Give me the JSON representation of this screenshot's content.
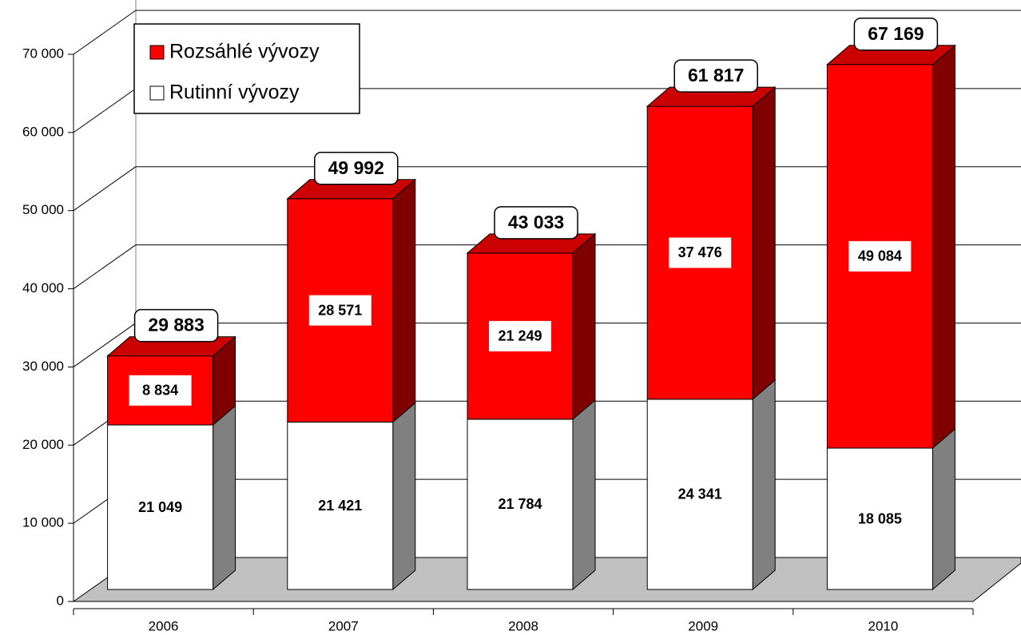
{
  "chart_data": {
    "type": "bar3d_stacked",
    "categories": [
      "2006",
      "2007",
      "2008",
      "2009",
      "2010"
    ],
    "series": [
      {
        "name": "Rutinní vývozy",
        "color": "#ffffff",
        "side_color": "#808080",
        "values": [
          21049,
          21421,
          21784,
          24341,
          18085
        ],
        "value_labels": [
          "21 049",
          "21 421",
          "21 784",
          "24 341",
          "18 085"
        ]
      },
      {
        "name": "Rozsáhlé vývozy",
        "color": "#ff0000",
        "side_color": "#800000",
        "values": [
          8834,
          28571,
          21249,
          37476,
          49084
        ],
        "value_labels": [
          "8 834",
          "28 571",
          "21 249",
          "37 476",
          "49 084"
        ]
      }
    ],
    "totals": [
      29883,
      49992,
      43033,
      61817,
      67169
    ],
    "total_labels": [
      "29 883",
      "49 992",
      "43 033",
      "61 817",
      "67 169"
    ],
    "ylim": [
      0,
      70000
    ],
    "yticks": [
      0,
      {
        "value": 10000,
        "label": "10 000"
      },
      {
        "value": 20000,
        "label": "20 000"
      },
      {
        "value": 30000,
        "label": "30 000"
      },
      {
        "value": 40000,
        "label": "40 000"
      },
      {
        "value": 50000,
        "label": "50 000"
      },
      {
        "value": 60000,
        "label": "60 000"
      },
      {
        "value": 70000,
        "label": "70 000"
      }
    ],
    "grid": true,
    "legend": "top-left"
  }
}
